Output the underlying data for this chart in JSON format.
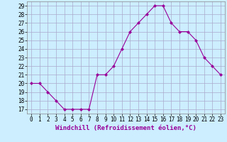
{
  "hours": [
    0,
    1,
    2,
    3,
    4,
    5,
    6,
    7,
    8,
    9,
    10,
    11,
    12,
    13,
    14,
    15,
    16,
    17,
    18,
    19,
    20,
    21,
    22,
    23
  ],
  "values": [
    20,
    20,
    19,
    18,
    17,
    17,
    17,
    17,
    21,
    21,
    22,
    24,
    26,
    27,
    28,
    29,
    29,
    27,
    26,
    26,
    25,
    23,
    22,
    21
  ],
  "line_color": "#990099",
  "marker": "D",
  "marker_size": 2,
  "bg_color": "#cceeff",
  "grid_color": "#aaaacc",
  "xlabel": "Windchill (Refroidissement éolien,°C)",
  "ylim_min": 16.5,
  "ylim_max": 29.5,
  "yticks": [
    17,
    18,
    19,
    20,
    21,
    22,
    23,
    24,
    25,
    26,
    27,
    28,
    29
  ],
  "xticks": [
    0,
    1,
    2,
    3,
    4,
    5,
    6,
    7,
    8,
    9,
    10,
    11,
    12,
    13,
    14,
    15,
    16,
    17,
    18,
    19,
    20,
    21,
    22,
    23
  ],
  "tick_fontsize": 5.5,
  "xlabel_fontsize": 6.5
}
